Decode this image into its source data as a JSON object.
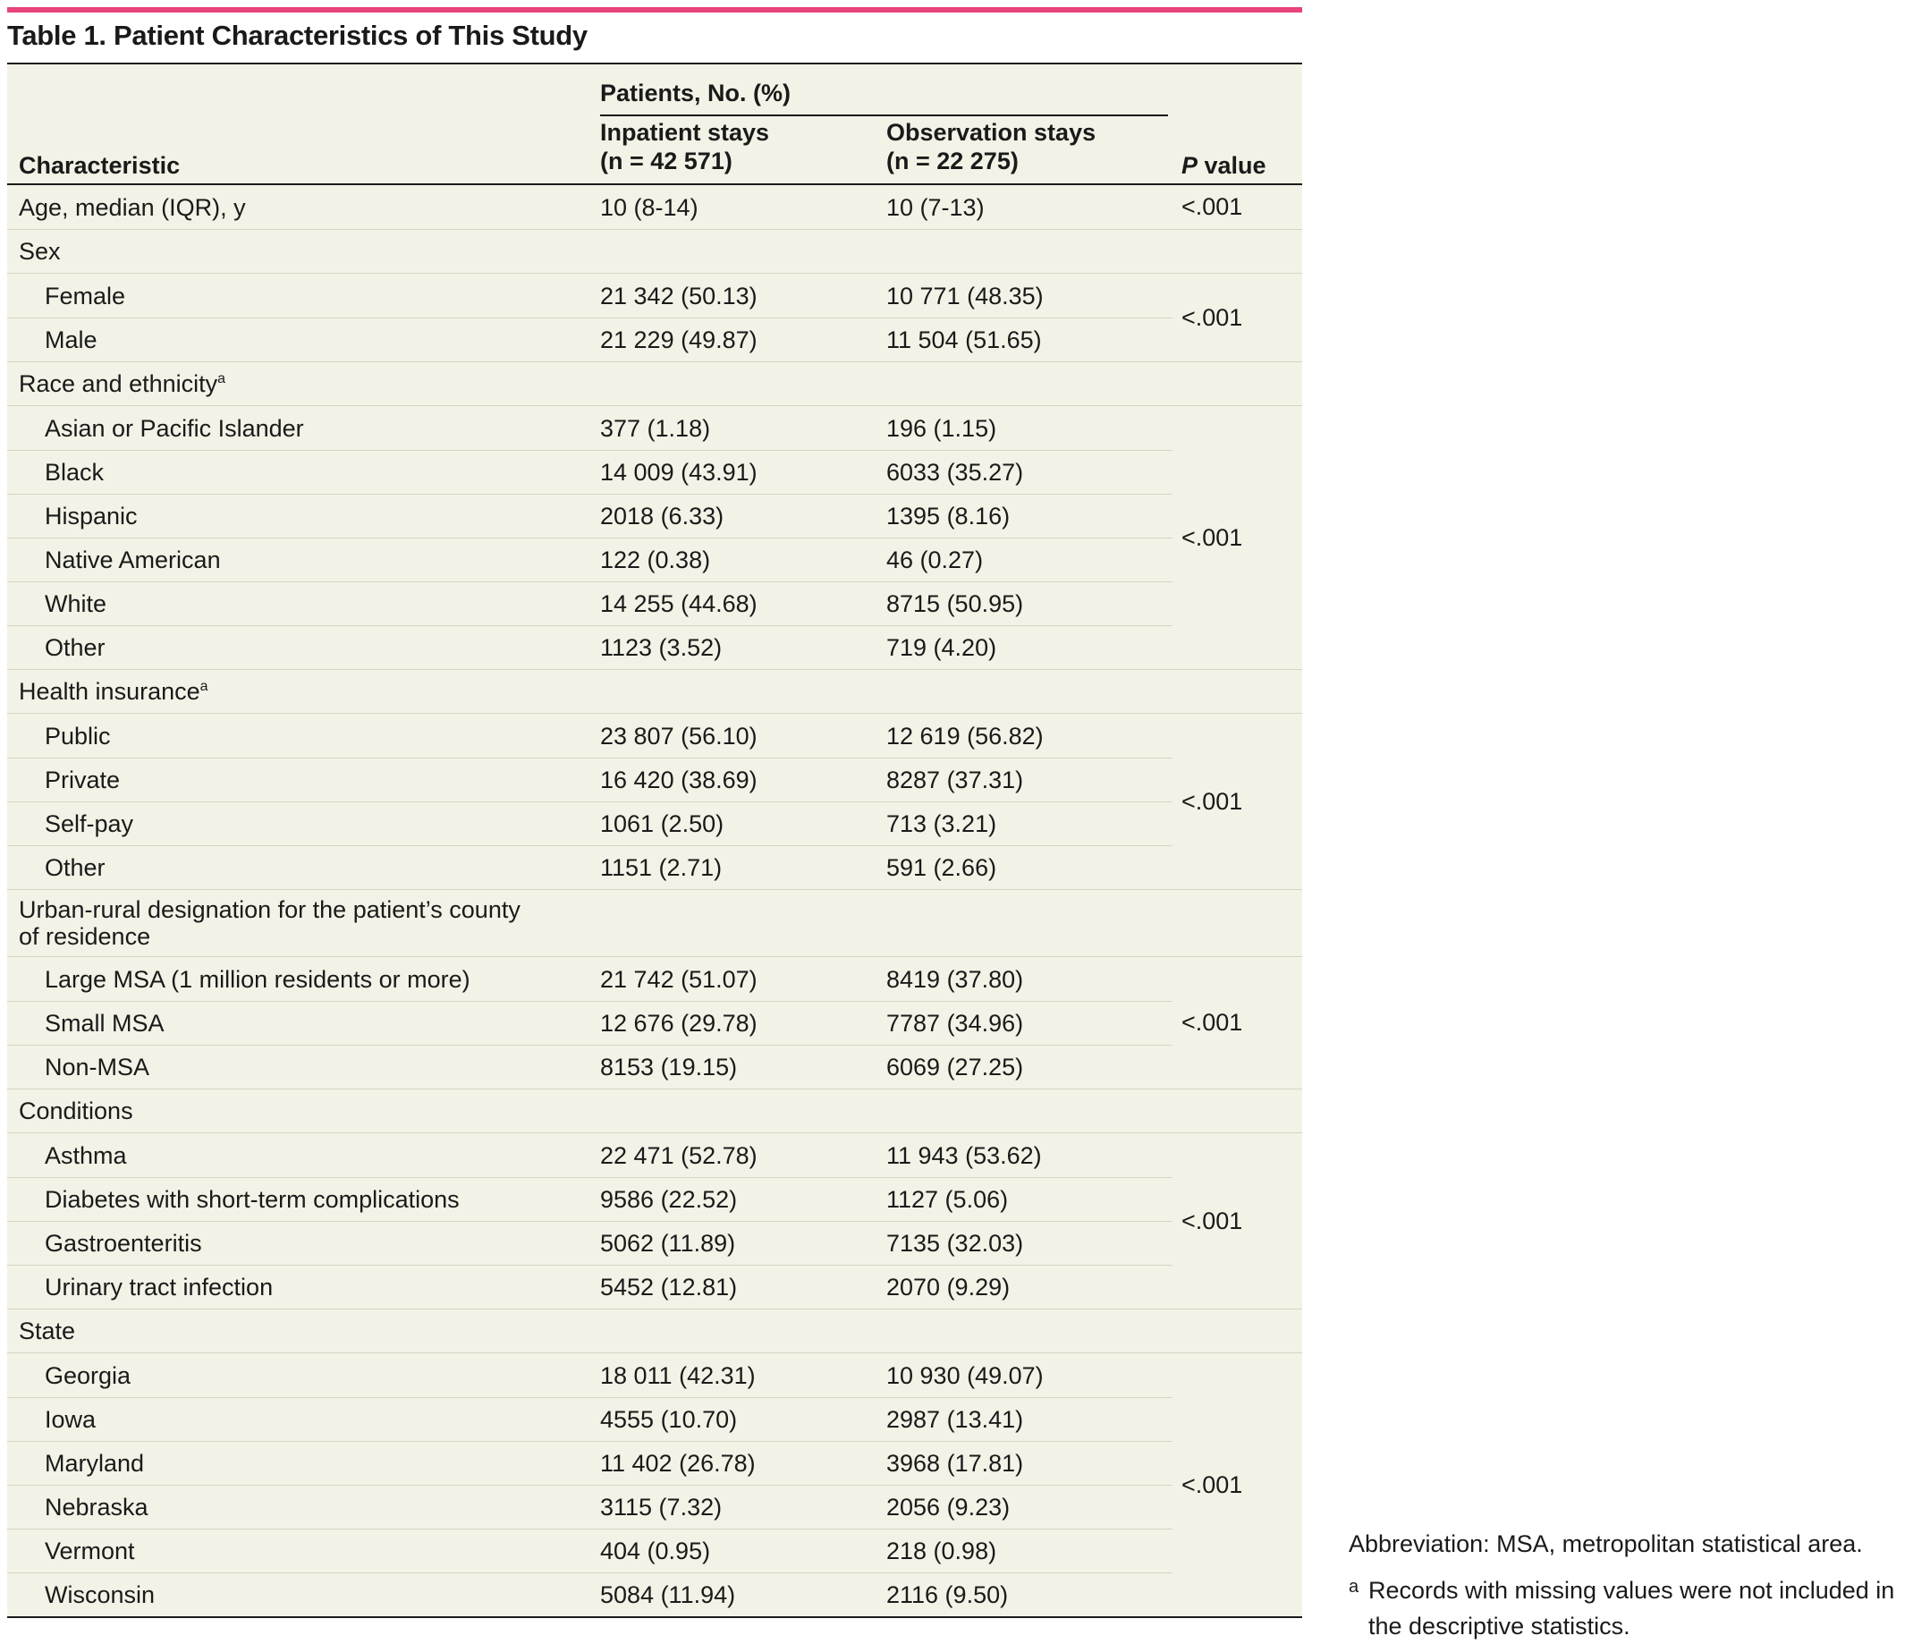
{
  "title": "Table 1. Patient Characteristics of This Study",
  "header": {
    "characteristic": "Characteristic",
    "patients": "Patients, No. (%)",
    "inpatient_line1": "Inpatient stays",
    "inpatient_line2": "(n = 42 571)",
    "observation_line1": "Observation stays",
    "observation_line2": "(n = 22 275)",
    "p_italic": "P",
    "p_rest": " value"
  },
  "rows": {
    "age": {
      "label": "Age, median (IQR), y",
      "inpatient": "10 (8-14)",
      "observation": "10 (7-13)",
      "p": "<.001"
    },
    "sex": {
      "label": "Sex",
      "p": "<.001",
      "items": [
        {
          "label": "Female",
          "inpatient": "21 342 (50.13)",
          "observation": "10 771 (48.35)"
        },
        {
          "label": "Male",
          "inpatient": "21 229 (49.87)",
          "observation": "11 504 (51.65)"
        }
      ]
    },
    "race": {
      "label": "Race and ethnicity",
      "sup": "a",
      "p": "<.001",
      "items": [
        {
          "label": "Asian or Pacific Islander",
          "inpatient": "377 (1.18)",
          "observation": "196 (1.15)"
        },
        {
          "label": "Black",
          "inpatient": "14 009 (43.91)",
          "observation": "6033 (35.27)"
        },
        {
          "label": "Hispanic",
          "inpatient": "2018 (6.33)",
          "observation": "1395 (8.16)"
        },
        {
          "label": "Native American",
          "inpatient": "122 (0.38)",
          "observation": "46 (0.27)"
        },
        {
          "label": "White",
          "inpatient": "14 255 (44.68)",
          "observation": "8715 (50.95)"
        },
        {
          "label": "Other",
          "inpatient": "1123 (3.52)",
          "observation": "719 (4.20)"
        }
      ]
    },
    "insurance": {
      "label": "Health insurance",
      "sup": "a",
      "p": "<.001",
      "items": [
        {
          "label": "Public",
          "inpatient": "23 807 (56.10)",
          "observation": "12 619 (56.82)"
        },
        {
          "label": "Private",
          "inpatient": "16 420 (38.69)",
          "observation": "8287 (37.31)"
        },
        {
          "label": "Self-pay",
          "inpatient": "1061 (2.50)",
          "observation": "713 (3.21)"
        },
        {
          "label": "Other",
          "inpatient": "1151 (2.71)",
          "observation": "591 (2.66)"
        }
      ]
    },
    "urban": {
      "label_line1": "Urban-rural designation for the patient’s county",
      "label_line2": "of residence",
      "p": "<.001",
      "items": [
        {
          "label": "Large MSA (1 million residents or more)",
          "inpatient": "21 742 (51.07)",
          "observation": "8419 (37.80)"
        },
        {
          "label": "Small MSA",
          "inpatient": "12 676 (29.78)",
          "observation": "7787 (34.96)"
        },
        {
          "label": "Non-MSA",
          "inpatient": "8153 (19.15)",
          "observation": "6069 (27.25)"
        }
      ]
    },
    "conditions": {
      "label": "Conditions",
      "p": "<.001",
      "items": [
        {
          "label": "Asthma",
          "inpatient": "22 471 (52.78)",
          "observation": "11 943 (53.62)"
        },
        {
          "label": "Diabetes with short-term complications",
          "inpatient": "9586 (22.52)",
          "observation": "1127 (5.06)"
        },
        {
          "label": "Gastroenteritis",
          "inpatient": "5062 (11.89)",
          "observation": "7135 (32.03)"
        },
        {
          "label": "Urinary tract infection",
          "inpatient": "5452 (12.81)",
          "observation": "2070 (9.29)"
        }
      ]
    },
    "state": {
      "label": "State",
      "p": "<.001",
      "items": [
        {
          "label": "Georgia",
          "inpatient": "18 011 (42.31)",
          "observation": "10 930 (49.07)"
        },
        {
          "label": "Iowa",
          "inpatient": "4555 (10.70)",
          "observation": "2987 (13.41)"
        },
        {
          "label": "Maryland",
          "inpatient": "11 402 (26.78)",
          "observation": "3968 (17.81)"
        },
        {
          "label": "Nebraska",
          "inpatient": "3115 (7.32)",
          "observation": "2056 (9.23)"
        },
        {
          "label": "Vermont",
          "inpatient": "404 (0.95)",
          "observation": "218 (0.98)"
        },
        {
          "label": "Wisconsin",
          "inpatient": "5084 (11.94)",
          "observation": "2116 (9.50)"
        }
      ]
    }
  },
  "footnotes": {
    "abbreviation": "Abbreviation: MSA, metropolitan statistical area.",
    "a_marker": "a",
    "a_text": "Records with missing values were not included in the descriptive statistics."
  }
}
